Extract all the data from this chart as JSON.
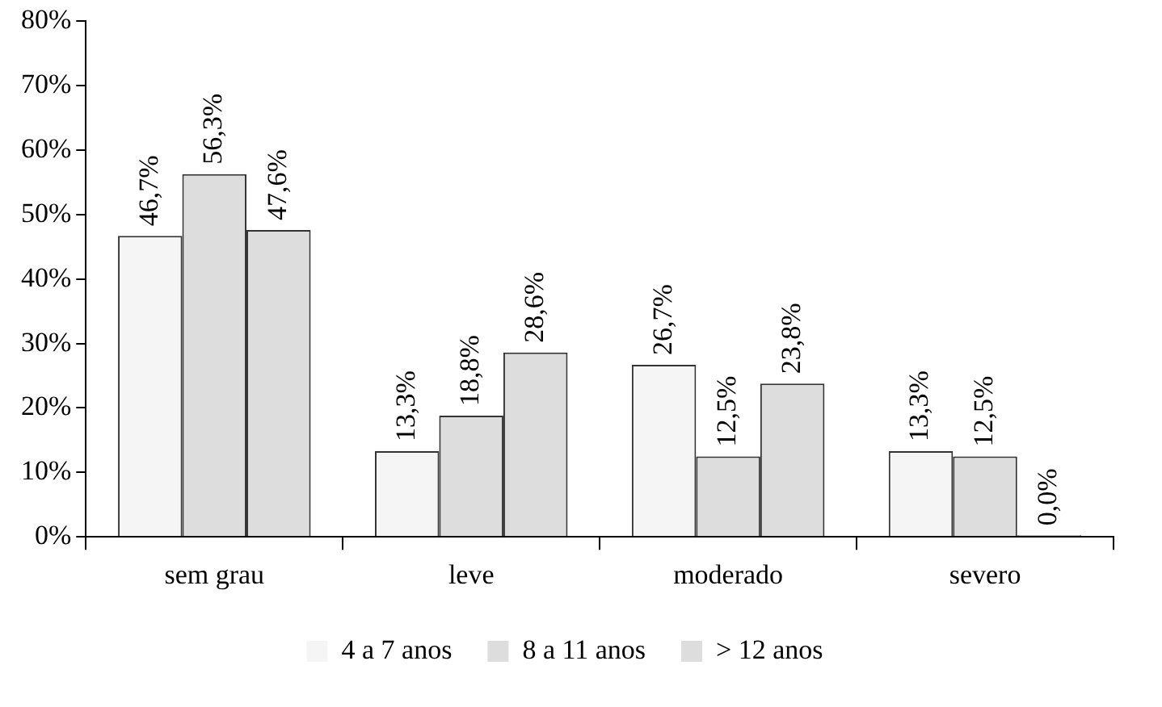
{
  "chart_data": {
    "type": "bar",
    "categories": [
      "sem grau",
      "leve",
      "moderado",
      "severo"
    ],
    "series": [
      {
        "name": "4 a 7 anos",
        "color": "#f5f5f5",
        "values": [
          46.7,
          13.3,
          26.7,
          13.3
        ],
        "value_labels": [
          "46,7%",
          "13,3%",
          "26,7%",
          "13,3%"
        ]
      },
      {
        "name": "8 a 11 anos",
        "color": "#dddddd",
        "values": [
          56.3,
          18.8,
          12.5,
          12.5
        ],
        "value_labels": [
          "56,3%",
          "18,8%",
          "12,5%",
          "12,5%"
        ]
      },
      {
        "name": "> 12 anos",
        "color": "#dddddd",
        "values": [
          47.6,
          28.6,
          23.8,
          0.0
        ],
        "value_labels": [
          "47,6%",
          "28,6%",
          "23,8%",
          "0,0%"
        ]
      }
    ],
    "ylim": [
      0,
      80
    ],
    "yticks": [
      {
        "value": 0,
        "label": "0%"
      },
      {
        "value": 10,
        "label": "10%"
      },
      {
        "value": 20,
        "label": "20%"
      },
      {
        "value": 30,
        "label": "30%"
      },
      {
        "value": 40,
        "label": "40%"
      },
      {
        "value": 50,
        "label": "50%"
      },
      {
        "value": 60,
        "label": "60%"
      },
      {
        "value": 70,
        "label": "70%"
      },
      {
        "value": 80,
        "label": "80%"
      }
    ],
    "grid": false,
    "legend": "bottom"
  }
}
